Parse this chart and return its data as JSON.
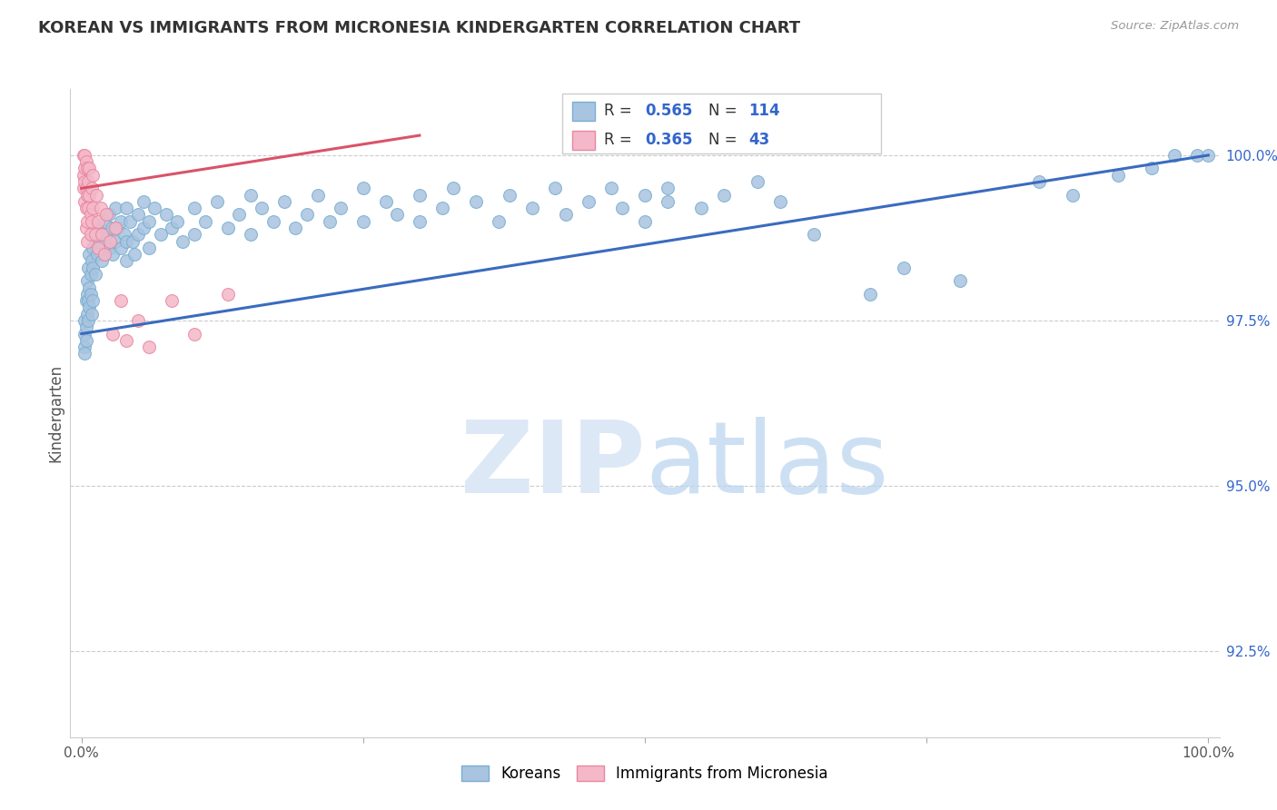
{
  "title": "KOREAN VS IMMIGRANTS FROM MICRONESIA KINDERGARTEN CORRELATION CHART",
  "source": "Source: ZipAtlas.com",
  "ylabel": "Kindergarten",
  "yticks": [
    92.5,
    95.0,
    97.5,
    100.0
  ],
  "ylim": [
    91.2,
    101.0
  ],
  "xlim": [
    -0.01,
    1.01
  ],
  "blue_scatter": [
    [
      0.003,
      97.5
    ],
    [
      0.003,
      97.3
    ],
    [
      0.003,
      97.1
    ],
    [
      0.003,
      97.0
    ],
    [
      0.004,
      97.8
    ],
    [
      0.004,
      97.4
    ],
    [
      0.004,
      97.2
    ],
    [
      0.005,
      98.1
    ],
    [
      0.005,
      97.9
    ],
    [
      0.005,
      97.6
    ],
    [
      0.006,
      98.3
    ],
    [
      0.006,
      97.8
    ],
    [
      0.006,
      97.5
    ],
    [
      0.007,
      98.5
    ],
    [
      0.007,
      98.0
    ],
    [
      0.007,
      97.7
    ],
    [
      0.008,
      98.2
    ],
    [
      0.008,
      97.9
    ],
    [
      0.009,
      98.4
    ],
    [
      0.009,
      97.6
    ],
    [
      0.01,
      98.6
    ],
    [
      0.01,
      98.3
    ],
    [
      0.01,
      97.8
    ],
    [
      0.012,
      98.7
    ],
    [
      0.012,
      98.2
    ],
    [
      0.014,
      98.9
    ],
    [
      0.014,
      98.5
    ],
    [
      0.016,
      98.7
    ],
    [
      0.018,
      98.4
    ],
    [
      0.018,
      98.8
    ],
    [
      0.02,
      99.0
    ],
    [
      0.02,
      98.5
    ],
    [
      0.022,
      98.8
    ],
    [
      0.024,
      99.1
    ],
    [
      0.025,
      98.6
    ],
    [
      0.027,
      98.9
    ],
    [
      0.028,
      98.5
    ],
    [
      0.03,
      99.2
    ],
    [
      0.03,
      98.7
    ],
    [
      0.032,
      98.9
    ],
    [
      0.035,
      99.0
    ],
    [
      0.035,
      98.6
    ],
    [
      0.038,
      98.8
    ],
    [
      0.04,
      99.2
    ],
    [
      0.04,
      98.7
    ],
    [
      0.04,
      98.4
    ],
    [
      0.043,
      99.0
    ],
    [
      0.045,
      98.7
    ],
    [
      0.047,
      98.5
    ],
    [
      0.05,
      99.1
    ],
    [
      0.05,
      98.8
    ],
    [
      0.055,
      99.3
    ],
    [
      0.055,
      98.9
    ],
    [
      0.06,
      99.0
    ],
    [
      0.06,
      98.6
    ],
    [
      0.065,
      99.2
    ],
    [
      0.07,
      98.8
    ],
    [
      0.075,
      99.1
    ],
    [
      0.08,
      98.9
    ],
    [
      0.085,
      99.0
    ],
    [
      0.09,
      98.7
    ],
    [
      0.1,
      99.2
    ],
    [
      0.1,
      98.8
    ],
    [
      0.11,
      99.0
    ],
    [
      0.12,
      99.3
    ],
    [
      0.13,
      98.9
    ],
    [
      0.14,
      99.1
    ],
    [
      0.15,
      99.4
    ],
    [
      0.15,
      98.8
    ],
    [
      0.16,
      99.2
    ],
    [
      0.17,
      99.0
    ],
    [
      0.18,
      99.3
    ],
    [
      0.19,
      98.9
    ],
    [
      0.2,
      99.1
    ],
    [
      0.21,
      99.4
    ],
    [
      0.22,
      99.0
    ],
    [
      0.23,
      99.2
    ],
    [
      0.25,
      99.5
    ],
    [
      0.25,
      99.0
    ],
    [
      0.27,
      99.3
    ],
    [
      0.28,
      99.1
    ],
    [
      0.3,
      99.4
    ],
    [
      0.3,
      99.0
    ],
    [
      0.32,
      99.2
    ],
    [
      0.33,
      99.5
    ],
    [
      0.35,
      99.3
    ],
    [
      0.37,
      99.0
    ],
    [
      0.38,
      99.4
    ],
    [
      0.4,
      99.2
    ],
    [
      0.42,
      99.5
    ],
    [
      0.43,
      99.1
    ],
    [
      0.45,
      99.3
    ],
    [
      0.47,
      99.5
    ],
    [
      0.48,
      99.2
    ],
    [
      0.5,
      99.4
    ],
    [
      0.5,
      99.0
    ],
    [
      0.52,
      99.3
    ],
    [
      0.52,
      99.5
    ],
    [
      0.55,
      99.2
    ],
    [
      0.57,
      99.4
    ],
    [
      0.6,
      99.6
    ],
    [
      0.62,
      99.3
    ],
    [
      0.65,
      98.8
    ],
    [
      0.7,
      97.9
    ],
    [
      0.73,
      98.3
    ],
    [
      0.78,
      98.1
    ],
    [
      0.85,
      99.6
    ],
    [
      0.88,
      99.4
    ],
    [
      0.92,
      99.7
    ],
    [
      0.95,
      99.8
    ],
    [
      0.97,
      100.0
    ],
    [
      0.99,
      100.0
    ],
    [
      1.0,
      100.0
    ]
  ],
  "pink_scatter": [
    [
      0.002,
      100.0
    ],
    [
      0.002,
      99.7
    ],
    [
      0.002,
      99.5
    ],
    [
      0.003,
      100.0
    ],
    [
      0.003,
      99.8
    ],
    [
      0.003,
      99.6
    ],
    [
      0.003,
      99.3
    ],
    [
      0.004,
      99.9
    ],
    [
      0.004,
      99.5
    ],
    [
      0.004,
      99.2
    ],
    [
      0.004,
      98.9
    ],
    [
      0.005,
      99.8
    ],
    [
      0.005,
      99.4
    ],
    [
      0.005,
      99.0
    ],
    [
      0.005,
      98.7
    ],
    [
      0.006,
      99.6
    ],
    [
      0.006,
      99.2
    ],
    [
      0.007,
      99.8
    ],
    [
      0.007,
      99.4
    ],
    [
      0.008,
      99.1
    ],
    [
      0.008,
      98.8
    ],
    [
      0.009,
      99.5
    ],
    [
      0.009,
      99.0
    ],
    [
      0.01,
      99.7
    ],
    [
      0.01,
      99.2
    ],
    [
      0.012,
      98.8
    ],
    [
      0.013,
      99.4
    ],
    [
      0.015,
      99.0
    ],
    [
      0.015,
      98.6
    ],
    [
      0.017,
      99.2
    ],
    [
      0.018,
      98.8
    ],
    [
      0.02,
      98.5
    ],
    [
      0.022,
      99.1
    ],
    [
      0.025,
      98.7
    ],
    [
      0.028,
      97.3
    ],
    [
      0.03,
      98.9
    ],
    [
      0.035,
      97.8
    ],
    [
      0.04,
      97.2
    ],
    [
      0.05,
      97.5
    ],
    [
      0.06,
      97.1
    ],
    [
      0.08,
      97.8
    ],
    [
      0.1,
      97.3
    ],
    [
      0.13,
      97.9
    ]
  ],
  "blue_line_x": [
    0.0,
    1.0
  ],
  "blue_line_y": [
    97.3,
    100.0
  ],
  "pink_line_x": [
    0.0,
    0.3
  ],
  "pink_line_y": [
    99.5,
    100.3
  ],
  "blue_line_color": "#3a6bbf",
  "pink_line_color": "#d9536a",
  "dot_size": 100,
  "blue_dot_face": "#a8c4e0",
  "blue_dot_edge": "#7aaed0",
  "pink_dot_face": "#f4b8c8",
  "pink_dot_edge": "#e888a0",
  "grid_color": "#cccccc",
  "background_color": "#ffffff",
  "title_color": "#333333",
  "axis_label_color": "#555555",
  "ytick_color": "#3366cc",
  "xtick_color": "#555555",
  "legend_R_color": "#3366cc",
  "legend_N_color": "#3366cc"
}
